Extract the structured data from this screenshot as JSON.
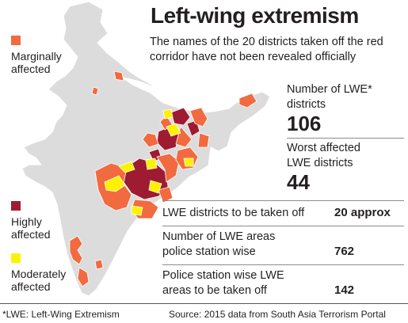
{
  "title": "Left-wing extremism",
  "subtitle": "The names of the 20 districts taken off the red corridor have not been revealed officially",
  "legend": [
    {
      "label_lines": [
        "Marginally",
        "affected"
      ],
      "color": "#f26a3f"
    },
    {
      "label_lines": [
        "Highly",
        "affected"
      ],
      "color": "#9e1b32"
    },
    {
      "label_lines": [
        "Moderately",
        "affected"
      ],
      "color": "#fff200"
    }
  ],
  "stats": [
    {
      "label_lines": [
        "Number of LWE*",
        "districts"
      ],
      "value": "106"
    },
    {
      "label_lines": [
        "Worst affected",
        "LWE districts"
      ],
      "value": "44"
    }
  ],
  "rows": [
    {
      "label_lines": [
        "LWE districts to be taken off"
      ],
      "value": "20 approx"
    },
    {
      "label_lines": [
        "Number of LWE areas",
        "police station wise"
      ],
      "value": "762"
    },
    {
      "label_lines": [
        "Police station wise LWE",
        "areas to be taken off"
      ],
      "value": "142"
    }
  ],
  "footnote": "*LWE: Left-Wing Extremism",
  "source": "Source: 2015 data from South Asia Terrorism Portal",
  "colors": {
    "land": "#dcdcdc",
    "border": "#ffffff",
    "marginal": "#f26a3f",
    "high": "#9e1b32",
    "moderate": "#fff200"
  }
}
